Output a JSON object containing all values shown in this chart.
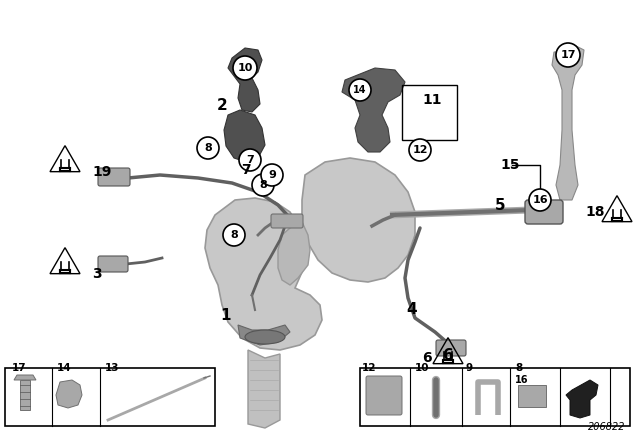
{
  "bg_color": "#ffffff",
  "diagram_id": "206822",
  "gray_light": "#d0d0d0",
  "gray_mid": "#a8a8a8",
  "gray_dark": "#707070",
  "gray_darker": "#555555",
  "wire_color": "#606060",
  "label_color": "#000000"
}
